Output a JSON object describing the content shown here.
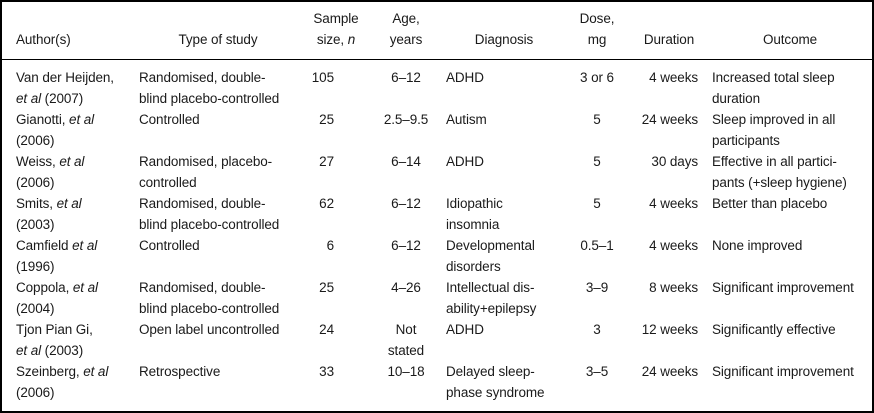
{
  "table": {
    "columns": [
      {
        "id": "author",
        "header_lines": [
          [
            "Author(s)"
          ]
        ],
        "header_align": "left",
        "body_align": "left"
      },
      {
        "id": "study",
        "header_lines": [
          [
            "Type of study"
          ]
        ],
        "header_align": "center",
        "body_align": "left"
      },
      {
        "id": "n",
        "header_lines": [
          [
            "Sample"
          ],
          [
            "size, ",
            {
              "t": "n",
              "i": true
            }
          ]
        ],
        "header_align": "center",
        "body_align": "right"
      },
      {
        "id": "age",
        "header_lines": [
          [
            "Age,"
          ],
          [
            "years"
          ]
        ],
        "header_align": "center",
        "body_align": "center"
      },
      {
        "id": "diagnosis",
        "header_lines": [
          [
            "Diagnosis"
          ]
        ],
        "header_align": "center",
        "body_align": "left"
      },
      {
        "id": "dose",
        "header_lines": [
          [
            "Dose,"
          ],
          [
            "mg"
          ]
        ],
        "header_align": "center",
        "body_align": "center"
      },
      {
        "id": "duration",
        "header_lines": [
          [
            "Duration"
          ]
        ],
        "header_align": "center",
        "body_align": "right"
      },
      {
        "id": "outcome",
        "header_lines": [
          [
            "Outcome"
          ]
        ],
        "header_align": "center",
        "body_align": "left"
      }
    ],
    "rows": [
      {
        "author": [
          [
            "Van der Heijden,"
          ],
          [
            {
              "t": "et al",
              "i": true
            },
            " (2007)"
          ]
        ],
        "study": [
          [
            "Randomised, double-"
          ],
          [
            "blind placebo-controlled"
          ]
        ],
        "n": [
          [
            "105"
          ]
        ],
        "age": [
          [
            "6–12"
          ]
        ],
        "diagnosis": [
          [
            "ADHD"
          ]
        ],
        "dose": [
          [
            "3 or 6"
          ]
        ],
        "duration": [
          [
            "4 weeks"
          ]
        ],
        "outcome": [
          [
            "Increased total sleep"
          ],
          [
            "duration"
          ]
        ]
      },
      {
        "author": [
          [
            "Gianotti, ",
            {
              "t": "et al",
              "i": true
            }
          ],
          [
            "(2006)"
          ]
        ],
        "study": [
          [
            "Controlled"
          ]
        ],
        "n": [
          [
            "25"
          ]
        ],
        "age": [
          [
            "2.5–9.5"
          ]
        ],
        "diagnosis": [
          [
            "Autism"
          ]
        ],
        "dose": [
          [
            "5"
          ]
        ],
        "duration": [
          [
            "24 weeks"
          ]
        ],
        "outcome": [
          [
            "Sleep improved in all"
          ],
          [
            "participants"
          ]
        ]
      },
      {
        "author": [
          [
            "Weiss, ",
            {
              "t": "et al",
              "i": true
            }
          ],
          [
            "(2006)"
          ]
        ],
        "study": [
          [
            "Randomised, placebo-"
          ],
          [
            "controlled"
          ]
        ],
        "n": [
          [
            "27"
          ]
        ],
        "age": [
          [
            "6–14"
          ]
        ],
        "diagnosis": [
          [
            "ADHD"
          ]
        ],
        "dose": [
          [
            "5"
          ]
        ],
        "duration": [
          [
            "30 days"
          ]
        ],
        "outcome": [
          [
            "Effective in all partici-"
          ],
          [
            "pants (+sleep hygiene)"
          ]
        ]
      },
      {
        "author": [
          [
            "Smits, ",
            {
              "t": "et al",
              "i": true
            }
          ],
          [
            "(2003)"
          ]
        ],
        "study": [
          [
            "Randomised, double-"
          ],
          [
            "blind placebo-controlled"
          ]
        ],
        "n": [
          [
            "62"
          ]
        ],
        "age": [
          [
            "6–12"
          ]
        ],
        "diagnosis": [
          [
            "Idiopathic"
          ],
          [
            "insomnia"
          ]
        ],
        "dose": [
          [
            "5"
          ]
        ],
        "duration": [
          [
            "4 weeks"
          ]
        ],
        "outcome": [
          [
            "Better than placebo"
          ]
        ]
      },
      {
        "author": [
          [
            "Camfield ",
            {
              "t": "et al",
              "i": true
            }
          ],
          [
            "(1996)"
          ]
        ],
        "study": [
          [
            "Controlled"
          ]
        ],
        "n": [
          [
            "6"
          ]
        ],
        "age": [
          [
            "6–12"
          ]
        ],
        "diagnosis": [
          [
            "Developmental"
          ],
          [
            "disorders"
          ]
        ],
        "dose": [
          [
            "0.5–1"
          ]
        ],
        "duration": [
          [
            "4 weeks"
          ]
        ],
        "outcome": [
          [
            "None improved"
          ]
        ]
      },
      {
        "author": [
          [
            "Coppola, ",
            {
              "t": "et al",
              "i": true
            }
          ],
          [
            "(2004)"
          ]
        ],
        "study": [
          [
            "Randomised, double-"
          ],
          [
            "blind placebo-controlled"
          ]
        ],
        "n": [
          [
            "25"
          ]
        ],
        "age": [
          [
            "4–26"
          ]
        ],
        "diagnosis": [
          [
            "Intellectual dis-"
          ],
          [
            "ability+epilepsy"
          ]
        ],
        "dose": [
          [
            "3–9"
          ]
        ],
        "duration": [
          [
            "8 weeks"
          ]
        ],
        "outcome": [
          [
            "Significant improvement"
          ]
        ]
      },
      {
        "author": [
          [
            "Tjon Pian Gi,"
          ],
          [
            {
              "t": "et al",
              "i": true
            },
            " (2003)"
          ]
        ],
        "study": [
          [
            "Open label uncontrolled"
          ]
        ],
        "n": [
          [
            "24"
          ]
        ],
        "age": [
          [
            "Not"
          ],
          [
            "stated"
          ]
        ],
        "diagnosis": [
          [
            "ADHD"
          ]
        ],
        "dose": [
          [
            "3"
          ]
        ],
        "duration": [
          [
            "12 weeks"
          ]
        ],
        "outcome": [
          [
            "Significantly effective"
          ]
        ]
      },
      {
        "author": [
          [
            "Szeinberg, ",
            {
              "t": "et al",
              "i": true
            }
          ],
          [
            "(2006)"
          ]
        ],
        "study": [
          [
            "Retrospective"
          ]
        ],
        "n": [
          [
            "33"
          ]
        ],
        "age": [
          [
            "10–18"
          ]
        ],
        "diagnosis": [
          [
            "Delayed sleep-"
          ],
          [
            "phase syndrome"
          ]
        ],
        "dose": [
          [
            "3–5"
          ]
        ],
        "duration": [
          [
            "24 weeks"
          ]
        ],
        "outcome": [
          [
            "Significant improvement"
          ]
        ]
      }
    ],
    "colors": {
      "text": "#1a1a1a",
      "border": "#000000",
      "background": "#ffffff"
    }
  }
}
